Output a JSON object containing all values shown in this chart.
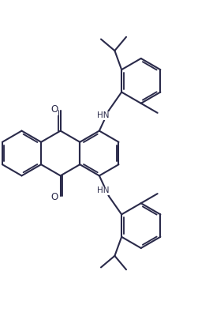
{
  "bg_color": "#ffffff",
  "line_color": "#2a2a4a",
  "line_width": 1.5,
  "figsize": [
    2.84,
    4.05
  ],
  "dpi": 100,
  "xlim": [
    -4.2,
    5.8
  ],
  "ylim": [
    -5.8,
    5.8
  ]
}
